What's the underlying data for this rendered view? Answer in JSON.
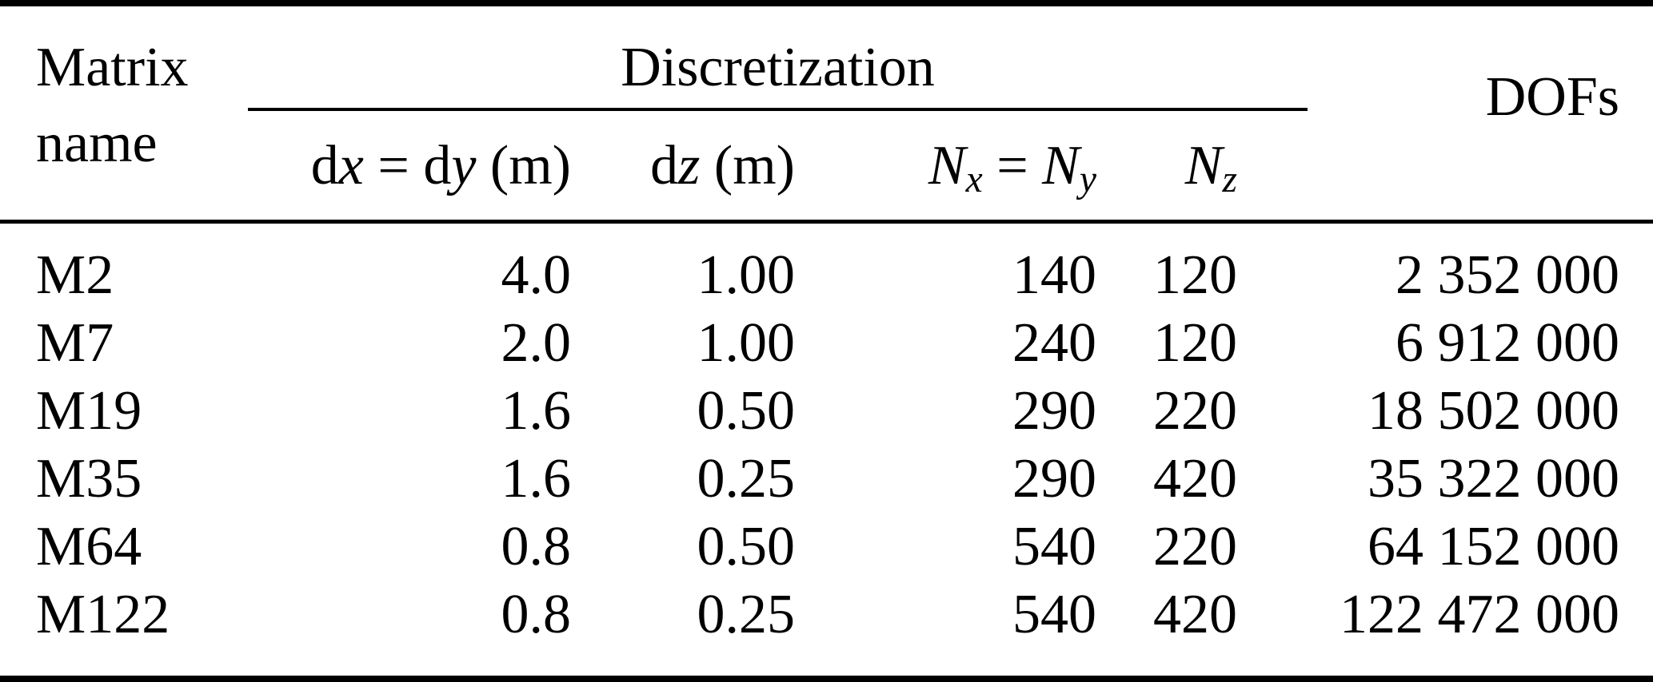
{
  "colors": {
    "text": "#000000",
    "background": "#ffffff",
    "rule": "#000000"
  },
  "table": {
    "header": {
      "matrix_line1": "Matrix",
      "matrix_line2": "name",
      "group_discretization": "Discretization",
      "dofs": "DOFs",
      "sub_columns": [
        {
          "id": "dx-dy",
          "text": "dx = dy (m)",
          "html": "d<i>x</i> = d<i>y</i> (m)"
        },
        {
          "id": "dz",
          "text": "dz (m)",
          "html": "d<i>z</i> (m)"
        },
        {
          "id": "nx-ny",
          "text": "Nx = Ny",
          "html": "<i>N</i><sub><i>x</i></sub> = <i>N</i><sub><i>y</i></sub>"
        },
        {
          "id": "nz",
          "text": "Nz",
          "html": "<i>N</i><sub><i>z</i></sub>"
        }
      ]
    },
    "rows": [
      {
        "matrix_name": "M2",
        "dx_dy_m": "4.0",
        "dz_m": "1.00",
        "nx_ny": "140",
        "nz": "120",
        "dofs": "2 352 000"
      },
      {
        "matrix_name": "M7",
        "dx_dy_m": "2.0",
        "dz_m": "1.00",
        "nx_ny": "240",
        "nz": "120",
        "dofs": "6 912 000"
      },
      {
        "matrix_name": "M19",
        "dx_dy_m": "1.6",
        "dz_m": "0.50",
        "nx_ny": "290",
        "nz": "220",
        "dofs": "18 502 000"
      },
      {
        "matrix_name": "M35",
        "dx_dy_m": "1.6",
        "dz_m": "0.25",
        "nx_ny": "290",
        "nz": "420",
        "dofs": "35 322 000"
      },
      {
        "matrix_name": "M64",
        "dx_dy_m": "0.8",
        "dz_m": "0.50",
        "nx_ny": "540",
        "nz": "220",
        "dofs": "64 152 000"
      },
      {
        "matrix_name": "M122",
        "dx_dy_m": "0.8",
        "dz_m": "0.25",
        "nx_ny": "540",
        "nz": "420",
        "dofs": "122 472 000"
      }
    ]
  }
}
